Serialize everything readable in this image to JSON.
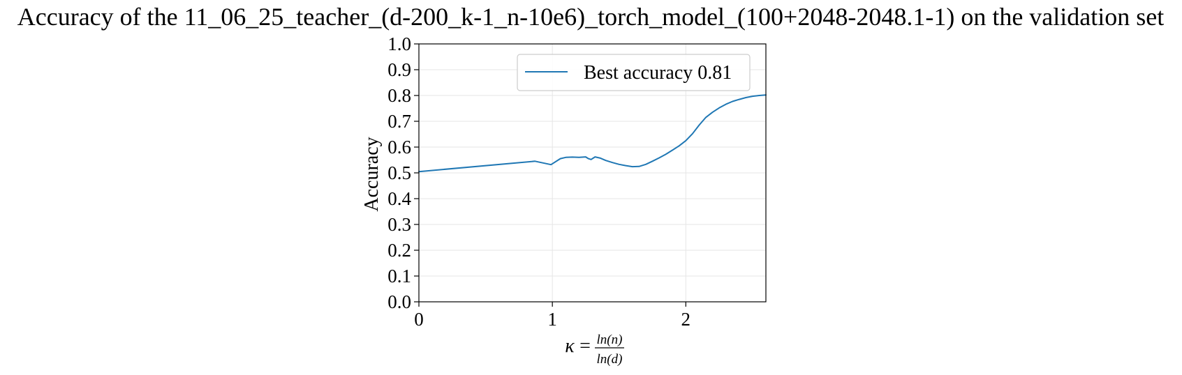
{
  "chart_data": {
    "type": "line",
    "title": "Accuracy of the 11_06_25_teacher_(d-200_k-1_n-10e6)_torch_model_(100+2048-2048.1-1) on the validation set",
    "xlabel": {
      "symbol": "κ",
      "equals": "=",
      "numerator": "ln(n)",
      "denominator": "ln(d)"
    },
    "ylabel": "Accuracy",
    "xlim": [
      0,
      2.6
    ],
    "ylim": [
      0,
      1.0
    ],
    "x_ticks": [
      "0",
      "1",
      "2"
    ],
    "y_ticks": [
      "0.0",
      "0.1",
      "0.2",
      "0.3",
      "0.4",
      "0.5",
      "0.6",
      "0.7",
      "0.8",
      "0.9",
      "1.0"
    ],
    "grid": true,
    "legend_position": "top-right",
    "series": [
      {
        "name": "Best accuracy 0.81",
        "color": "#1f77b4",
        "x": [
          0,
          0.87,
          0.99,
          1.06,
          1.1,
          1.15,
          1.2,
          1.25,
          1.27,
          1.29,
          1.32,
          1.36,
          1.4,
          1.45,
          1.5,
          1.55,
          1.6,
          1.65,
          1.7,
          1.75,
          1.8,
          1.85,
          1.9,
          1.95,
          2.0,
          2.05,
          2.1,
          2.15,
          2.2,
          2.25,
          2.3,
          2.35,
          2.4,
          2.45,
          2.5,
          2.55,
          2.6
        ],
        "y": [
          0.505,
          0.545,
          0.532,
          0.555,
          0.56,
          0.561,
          0.56,
          0.562,
          0.555,
          0.552,
          0.562,
          0.557,
          0.548,
          0.54,
          0.533,
          0.528,
          0.524,
          0.525,
          0.533,
          0.545,
          0.558,
          0.572,
          0.588,
          0.605,
          0.625,
          0.652,
          0.685,
          0.715,
          0.735,
          0.752,
          0.766,
          0.777,
          0.785,
          0.792,
          0.797,
          0.8,
          0.802
        ]
      }
    ]
  }
}
